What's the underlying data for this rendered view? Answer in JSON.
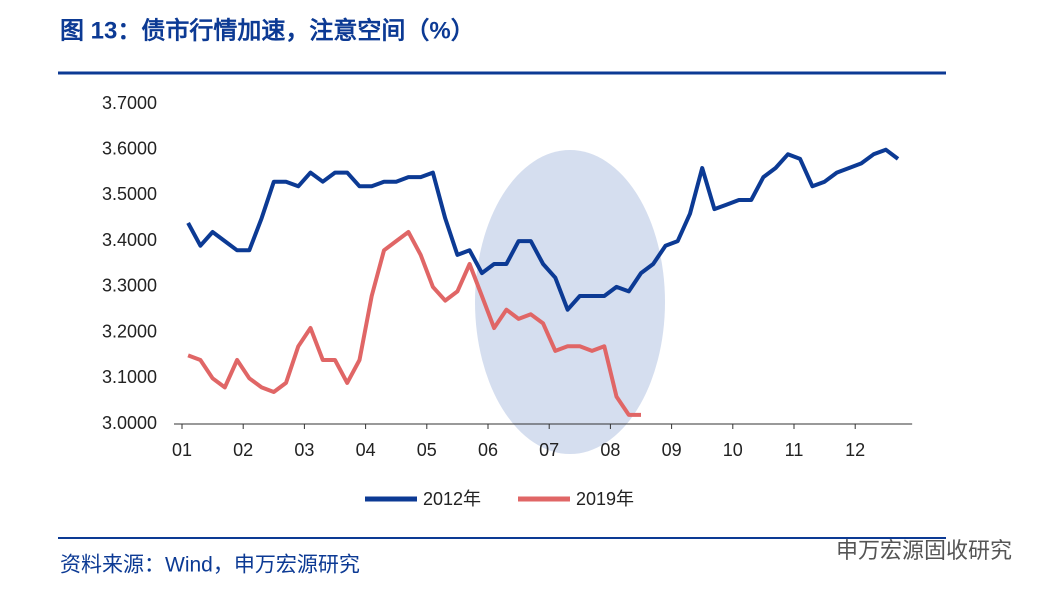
{
  "chart_data": {
    "type": "line",
    "title": "图 13：债市行情加速，注意空间（%）",
    "source": "资料来源：Wind，申万宏源研究",
    "watermark": "申万宏源固收研究",
    "x": [
      1.1,
      1.3,
      1.5,
      1.7,
      1.9,
      2.1,
      2.3,
      2.5,
      2.7,
      2.9,
      3.1,
      3.3,
      3.5,
      3.7,
      3.9,
      4.1,
      4.3,
      4.5,
      4.7,
      4.9,
      5.1,
      5.3,
      5.5,
      5.7,
      5.9,
      6.1,
      6.3,
      6.5,
      6.7,
      6.9,
      7.1,
      7.3,
      7.5,
      7.7,
      7.9,
      8.1,
      8.3,
      8.5,
      8.7,
      8.9,
      9.1,
      9.3,
      9.5,
      9.7,
      9.9,
      10.1,
      10.3,
      10.5,
      10.7,
      10.9,
      11.1,
      11.3,
      11.5,
      11.7,
      11.9,
      12.1,
      12.3,
      12.5,
      12.7
    ],
    "series": [
      {
        "name": "2012年",
        "color": "#0c3a94",
        "values": [
          3.44,
          3.39,
          3.42,
          3.4,
          3.38,
          3.38,
          3.45,
          3.53,
          3.53,
          3.52,
          3.55,
          3.53,
          3.55,
          3.55,
          3.52,
          3.52,
          3.53,
          3.53,
          3.54,
          3.54,
          3.55,
          3.45,
          3.37,
          3.38,
          3.33,
          3.35,
          3.35,
          3.4,
          3.4,
          3.35,
          3.32,
          3.25,
          3.28,
          3.28,
          3.28,
          3.3,
          3.29,
          3.33,
          3.35,
          3.39,
          3.4,
          3.46,
          3.56,
          3.47,
          3.48,
          3.49,
          3.49,
          3.54,
          3.56,
          3.59,
          3.58,
          3.52,
          3.53,
          3.55,
          3.56,
          3.57,
          3.59,
          3.6,
          3.58
        ]
      },
      {
        "name": "2019年",
        "color": "#e06666",
        "values": [
          3.15,
          3.14,
          3.1,
          3.08,
          3.14,
          3.1,
          3.08,
          3.07,
          3.09,
          3.17,
          3.21,
          3.14,
          3.14,
          3.09,
          3.14,
          3.28,
          3.38,
          3.4,
          3.42,
          3.37,
          3.3,
          3.27,
          3.29,
          3.35,
          3.28,
          3.21,
          3.25,
          3.23,
          3.24,
          3.22,
          3.16,
          3.17,
          3.17,
          3.16,
          3.17,
          3.06,
          3.02,
          3.02,
          null,
          null,
          null,
          null,
          null,
          null,
          null,
          null,
          null,
          null,
          null,
          null,
          null,
          null,
          null,
          null,
          null,
          null,
          null,
          null,
          null
        ]
      }
    ],
    "xlim": [
      1,
      12.8
    ],
    "xticks": [
      {
        "value": 1,
        "label": "01"
      },
      {
        "value": 2,
        "label": "02"
      },
      {
        "value": 3,
        "label": "03"
      },
      {
        "value": 4,
        "label": "04"
      },
      {
        "value": 5,
        "label": "05"
      },
      {
        "value": 6,
        "label": "06"
      },
      {
        "value": 7,
        "label": "07"
      },
      {
        "value": 8,
        "label": "08"
      },
      {
        "value": 9,
        "label": "09"
      },
      {
        "value": 10,
        "label": "10"
      },
      {
        "value": 11,
        "label": "11"
      },
      {
        "value": 12,
        "label": "12"
      }
    ],
    "ylim": [
      3.0,
      3.7
    ],
    "yticks": [
      {
        "value": 3.0,
        "label": "3.0000"
      },
      {
        "value": 3.1,
        "label": "3.1000"
      },
      {
        "value": 3.2,
        "label": "3.2000"
      },
      {
        "value": 3.3,
        "label": "3.3000"
      },
      {
        "value": 3.4,
        "label": "3.4000"
      },
      {
        "value": 3.5,
        "label": "3.5000"
      },
      {
        "value": 3.6,
        "label": "3.6000"
      },
      {
        "value": 3.7,
        "label": "3.7000"
      }
    ],
    "grid": false,
    "legend": "bottom"
  }
}
